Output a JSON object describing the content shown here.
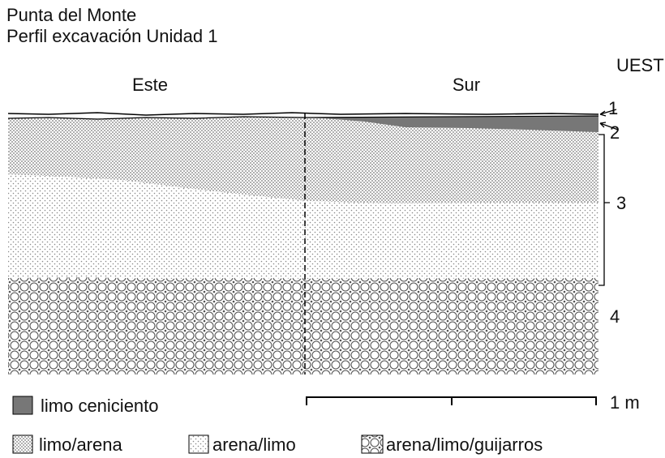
{
  "header": {
    "title": "Punta del Monte",
    "subtitle": "Perfil excavación Unidad 1"
  },
  "profile": {
    "walls": [
      "Este",
      "Sur"
    ],
    "unit_heading": "UEST",
    "units": [
      "1",
      "2",
      "3",
      "4"
    ]
  },
  "legend": [
    "limo ceniciento",
    "limo/arena",
    "arena/limo",
    "arena/limo/guijarros"
  ],
  "scale": "1 m"
}
